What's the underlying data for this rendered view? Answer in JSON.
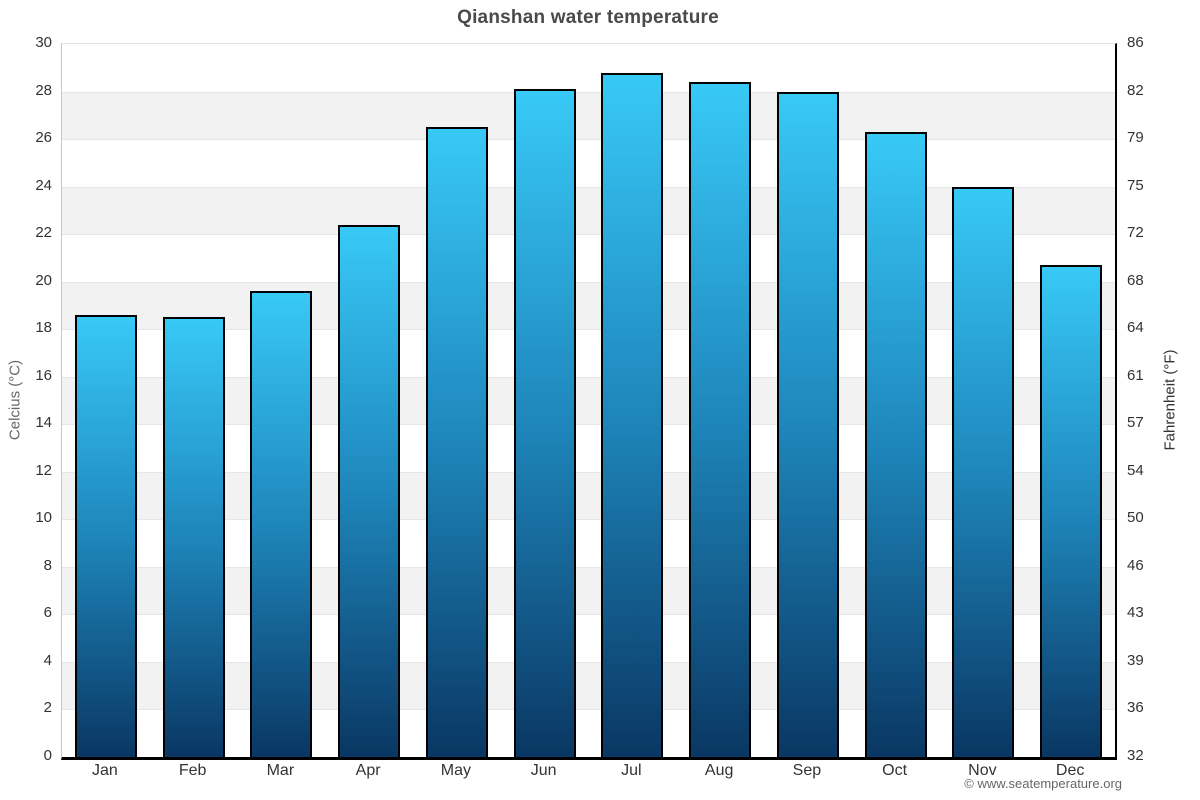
{
  "page": {
    "footer_credit": "© www.seatemperature.org"
  },
  "chart_data": {
    "type": "bar",
    "title": "Qianshan water temperature",
    "categories": [
      "Jan",
      "Feb",
      "Mar",
      "Apr",
      "May",
      "Jun",
      "Jul",
      "Aug",
      "Sep",
      "Oct",
      "Nov",
      "Dec"
    ],
    "values": [
      18.6,
      18.5,
      19.6,
      22.4,
      26.5,
      28.1,
      28.8,
      28.4,
      28.0,
      26.3,
      24.0,
      20.7
    ],
    "xlabel": "",
    "ylabel_left": "Celcius (°C)",
    "ylabel_right": "Fahrenheit (°F)",
    "ylim": [
      0,
      30
    ],
    "ytick_step": 2,
    "yticks_left": [
      "30",
      "28",
      "26",
      "24",
      "22",
      "20",
      "18",
      "16",
      "14",
      "12",
      "10",
      "8",
      "6",
      "4",
      "2",
      "0"
    ],
    "yticks_right": [
      "86",
      "82",
      "79",
      "75",
      "72",
      "68",
      "64",
      "61",
      "57",
      "54",
      "50",
      "46",
      "43",
      "39",
      "36",
      "32"
    ],
    "legend": "none",
    "grid": "horizontal gridlines every 2°C with alternating light-gray bands",
    "colors": {
      "bar_gradient_top": "#38c9f7",
      "bar_gradient_mid": "#1e86bb",
      "bar_gradient_bottom": "#0a3763",
      "bar_border": "#000000",
      "band_gray": "#f2f2f2",
      "gridline": "#e6e6e6",
      "axis_line_left": "#c6c6c6",
      "axis_line_dark": "#000000",
      "title_text": "#4a4a4a",
      "tick_text": "#333333",
      "axis_title_left_text": "#666666",
      "axis_title_right_text": "#333333",
      "footer_text": "#666666"
    }
  }
}
